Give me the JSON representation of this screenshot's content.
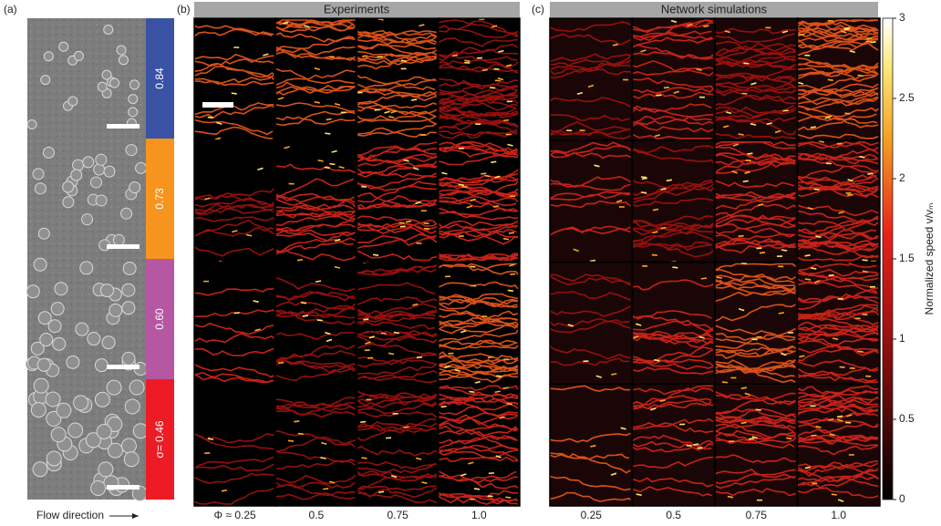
{
  "panels": {
    "a": "(a)",
    "b": "(b)",
    "c": "(c)"
  },
  "headers": {
    "experiments": "Experiments",
    "simulations": "Network simulations"
  },
  "sigma_labels": [
    "0.84",
    "0.73",
    "0.60",
    "σ= 0.46"
  ],
  "flow_direction": "Flow direction",
  "phi_labels_experiments": [
    "Φ ≈ 0.25",
    "0.5",
    "0.75",
    "1.0"
  ],
  "phi_labels_simulations": [
    "0.25",
    "0.5",
    "0.75",
    "1.0"
  ],
  "colorbar": {
    "label": "Normalized speed v/vₘ",
    "lim": [
      0,
      3
    ],
    "ticks": [
      0,
      0.5,
      1,
      1.5,
      2,
      2.5,
      3
    ]
  }
}
